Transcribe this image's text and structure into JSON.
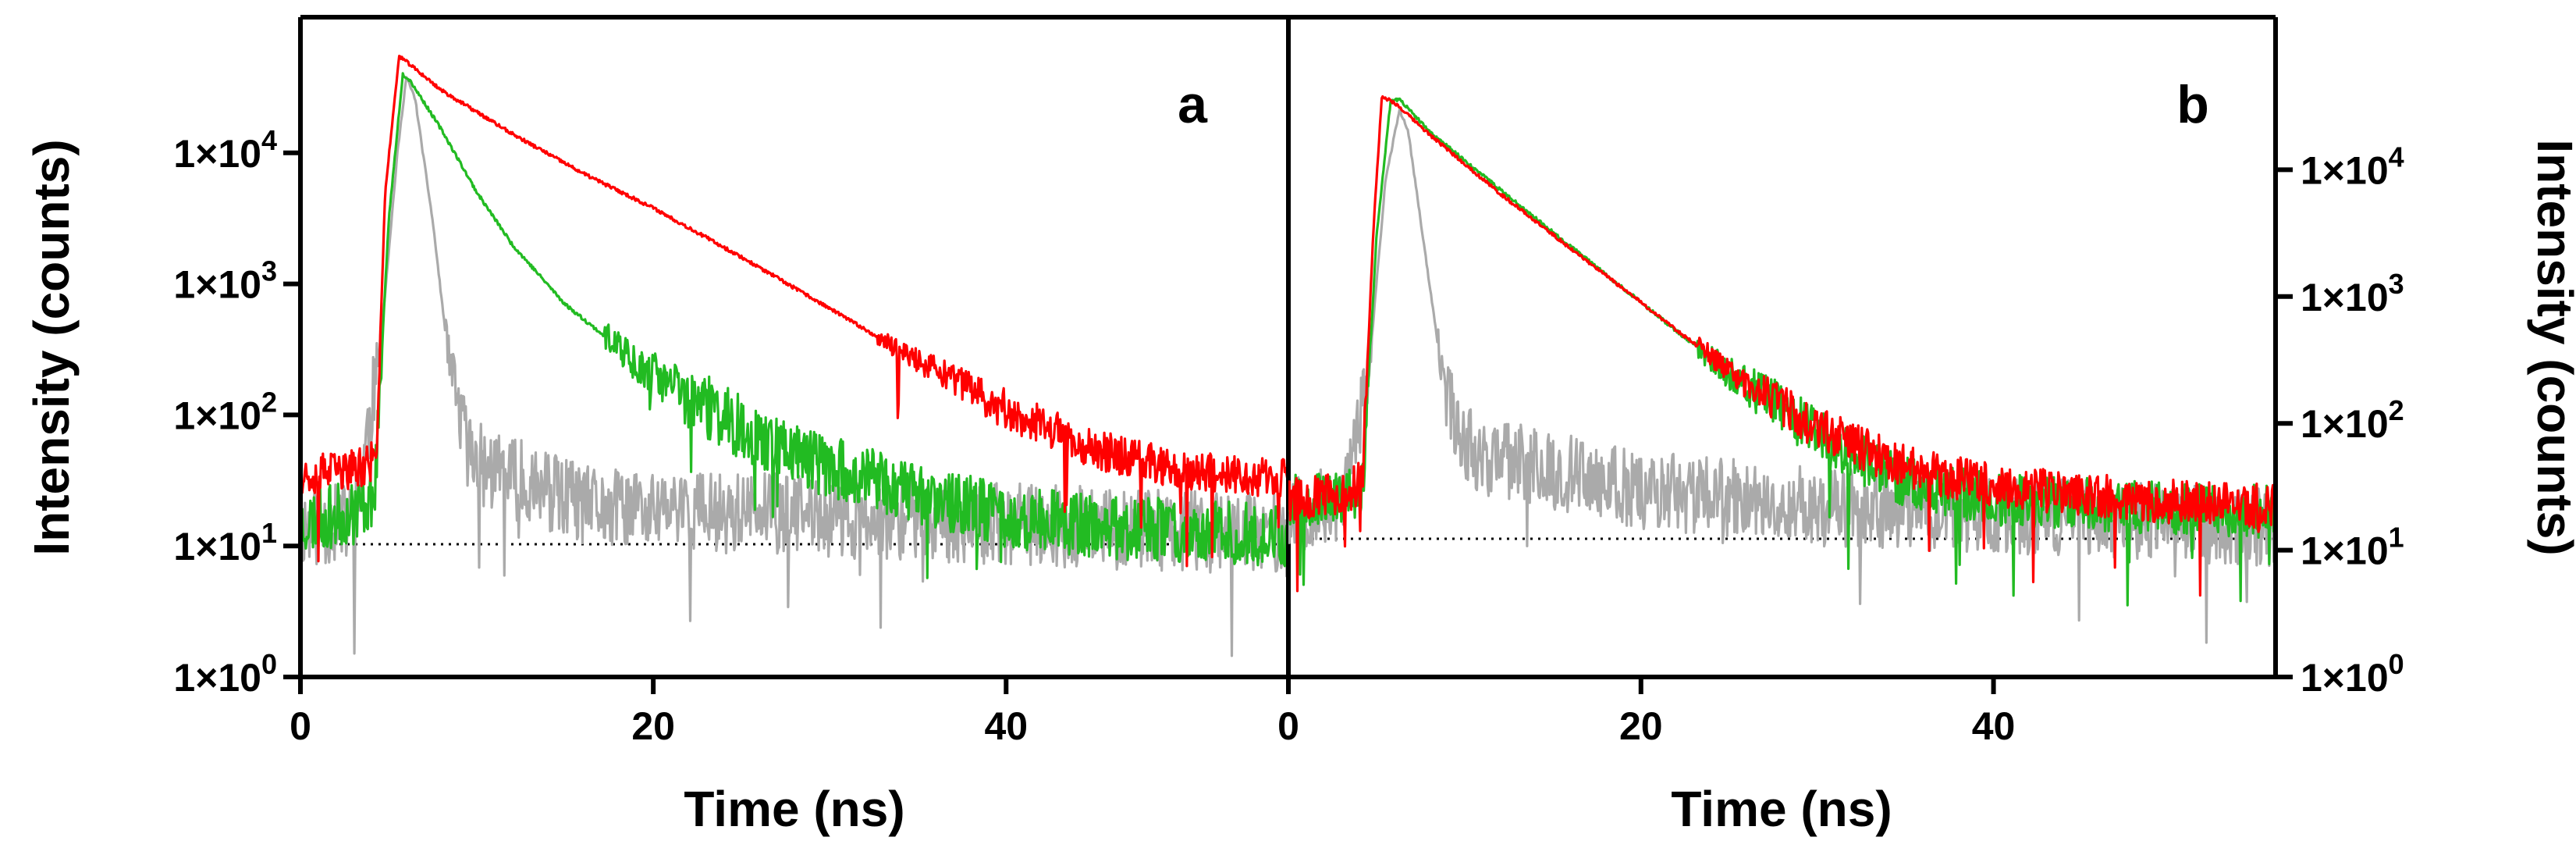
{
  "chart_data": [
    {
      "panel_label": "a",
      "type": "line",
      "xlabel": "Time (ns)",
      "ylabel": "Intensity (counts)",
      "xlim": [
        0,
        56
      ],
      "ylim": [
        1,
        100000
      ],
      "yscale": "log",
      "x_ticks": [
        "0",
        "20",
        "40"
      ],
      "y_ticks": [
        {
          "value": 1,
          "base": "1×10",
          "exp": "0"
        },
        {
          "value": 10,
          "base": "1×10",
          "exp": "1"
        },
        {
          "value": 100,
          "base": "1×10",
          "exp": "2"
        },
        {
          "value": 1000,
          "base": "1×10",
          "exp": "3"
        },
        {
          "value": 10000,
          "base": "1×10",
          "exp": "4"
        }
      ],
      "reference_line": {
        "y": 10,
        "style": "dotted"
      },
      "series": [
        {
          "color": "#aaaaaa",
          "noise": 0.45,
          "seed": 11,
          "baseline": 12,
          "points": [
            [
              0,
              14
            ],
            [
              3,
              15
            ],
            [
              4.5,
              300
            ],
            [
              5.5,
              10000
            ],
            [
              6,
              38000
            ],
            [
              6.5,
              26000
            ],
            [
              7.5,
              3000
            ],
            [
              8.5,
              200
            ],
            [
              9.5,
              55
            ],
            [
              10.5,
              38
            ],
            [
              13,
              30
            ],
            [
              16,
              20
            ],
            [
              56,
              12
            ]
          ]
        },
        {
          "color": "#22bb22",
          "noise": 0.35,
          "seed": 23,
          "baseline": 10,
          "points": [
            [
              0,
              15
            ],
            [
              3,
              18
            ],
            [
              4.2,
              25
            ],
            [
              5,
              3000
            ],
            [
              5.8,
              40000
            ],
            [
              6.2,
              36000
            ],
            [
              8,
              15000
            ],
            [
              10,
              5000
            ],
            [
              12,
              2000
            ],
            [
              15,
              700
            ],
            [
              20,
              200
            ],
            [
              25,
              80
            ],
            [
              30,
              40
            ],
            [
              35,
              25
            ],
            [
              40,
              17
            ],
            [
              45,
              14
            ],
            [
              56,
              12
            ]
          ]
        },
        {
          "color": "#ff0000",
          "noise": 0.22,
          "seed": 37,
          "baseline": 30,
          "points": [
            [
              0,
              35
            ],
            [
              3,
              38
            ],
            [
              4.3,
              45
            ],
            [
              4.8,
              5000
            ],
            [
              5.6,
              55000
            ],
            [
              8,
              30000
            ],
            [
              12,
              14000
            ],
            [
              16,
              7000
            ],
            [
              20,
              3800
            ],
            [
              25,
              1600
            ],
            [
              30,
              650
            ],
            [
              35,
              260
            ],
            [
              40,
              110
            ],
            [
              45,
              55
            ],
            [
              50,
              38
            ],
            [
              56,
              32
            ]
          ]
        }
      ]
    },
    {
      "panel_label": "b",
      "type": "line",
      "xlabel": "Time (ns)",
      "ylabel": "Intensity (counts)",
      "xlim": [
        0,
        56
      ],
      "ylim": [
        1,
        100000
      ],
      "yscale": "log",
      "x_ticks": [
        "0",
        "20",
        "40"
      ],
      "y_ticks": [
        {
          "value": 1,
          "base": "1×10",
          "exp": "0"
        },
        {
          "value": 10,
          "base": "1×10",
          "exp": "1"
        },
        {
          "value": 100,
          "base": "1×10",
          "exp": "2"
        },
        {
          "value": 1000,
          "base": "1×10",
          "exp": "3"
        },
        {
          "value": 10000,
          "base": "1×10",
          "exp": "4"
        }
      ],
      "reference_line": {
        "y": 10,
        "style": "dotted"
      },
      "series": [
        {
          "color": "#aaaaaa",
          "noise": 0.45,
          "seed": 53,
          "baseline": 14,
          "points": [
            [
              0,
              20
            ],
            [
              3,
              22
            ],
            [
              4.5,
              200
            ],
            [
              5.5,
              8000
            ],
            [
              6.3,
              30000
            ],
            [
              6.8,
              20000
            ],
            [
              7.8,
              2000
            ],
            [
              8.8,
              200
            ],
            [
              9.8,
              80
            ],
            [
              11,
              55
            ],
            [
              14,
              45
            ],
            [
              20,
              30
            ],
            [
              30,
              22
            ],
            [
              56,
              15
            ]
          ]
        },
        {
          "color": "#22bb22",
          "noise": 0.3,
          "seed": 67,
          "baseline": 18,
          "points": [
            [
              0,
              25
            ],
            [
              3,
              25
            ],
            [
              4.2,
              30
            ],
            [
              5,
              3000
            ],
            [
              5.8,
              35000
            ],
            [
              6.3,
              36000
            ],
            [
              8,
              20000
            ],
            [
              12,
              7000
            ],
            [
              16,
              2500
            ],
            [
              20,
              900
            ],
            [
              25,
              250
            ],
            [
              30,
              80
            ],
            [
              35,
              35
            ],
            [
              40,
              25
            ],
            [
              48,
              22
            ],
            [
              56,
              20
            ]
          ]
        },
        {
          "color": "#ff0000",
          "noise": 0.25,
          "seed": 79,
          "baseline": 20,
          "points": [
            [
              0,
              25
            ],
            [
              3,
              27
            ],
            [
              4.2,
              35
            ],
            [
              4.8,
              3000
            ],
            [
              5.3,
              38000
            ],
            [
              6,
              34000
            ],
            [
              8,
              19000
            ],
            [
              12,
              6500
            ],
            [
              16,
              2400
            ],
            [
              20,
              900
            ],
            [
              25,
              260
            ],
            [
              30,
              90
            ],
            [
              35,
              45
            ],
            [
              40,
              32
            ],
            [
              48,
              25
            ],
            [
              56,
              22
            ]
          ]
        }
      ]
    }
  ]
}
